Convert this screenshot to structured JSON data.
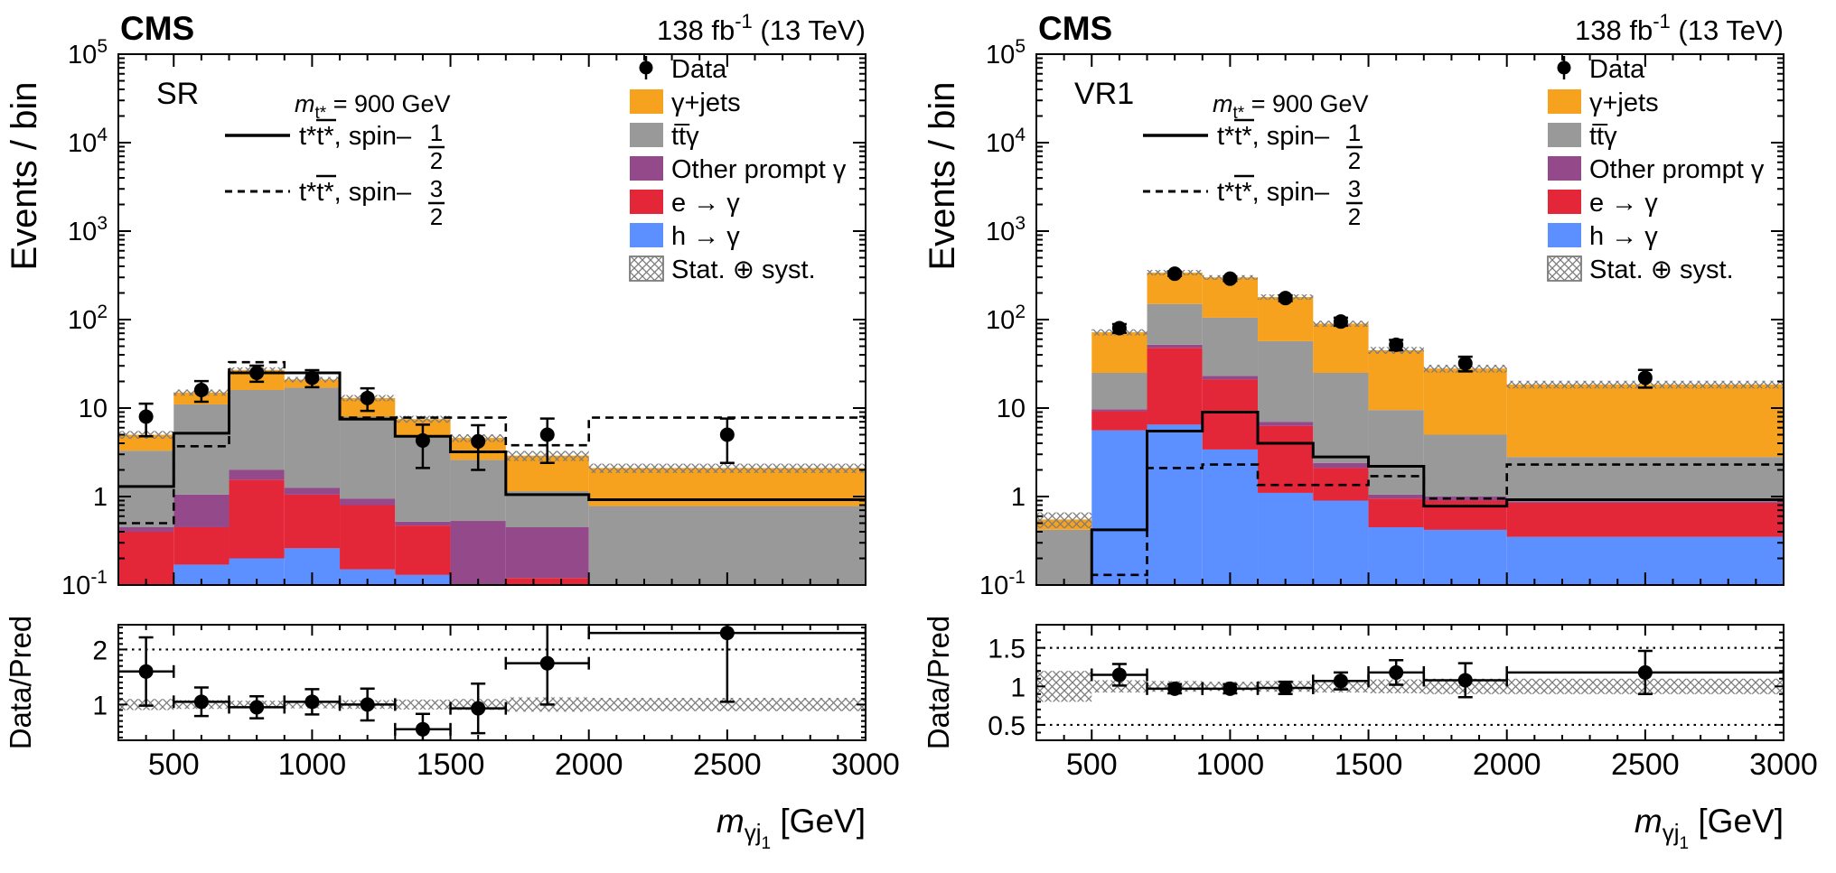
{
  "figure_title": "CMS excited top quark search m_gamma_j1 distributions",
  "colors": {
    "orange": "#F7A21F",
    "gray": "#999999",
    "purple": "#94498B",
    "red": "#E32638",
    "blue": "#5C8FFF",
    "hatch": "#7b7b7b",
    "black": "#000000"
  },
  "axes_common": {
    "xlim": [
      300,
      3000
    ],
    "x_major_ticks": [
      500,
      1000,
      1500,
      2000,
      2500,
      3000
    ],
    "x_minor_step": 100,
    "y_decade_labels": [
      5,
      4,
      3,
      2,
      1,
      0,
      -1
    ],
    "ylim": [
      0.1,
      100000
    ]
  },
  "chart_data": [
    {
      "type": "stacked-histogram-log+ratio",
      "region_label": "SR",
      "experiment_label": "CMS",
      "lumi_label": {
        "pre": "138 fb",
        "sup": "-1",
        "post": " (13 TeV)"
      },
      "ylabel": "Events / bin",
      "xlabel": {
        "var": "m",
        "sub": "γj",
        "subsub": "1",
        "unit": " [GeV]"
      },
      "signal_mass_label": {
        "var": "m",
        "sub": "t*",
        "rest": " = 900 GeV"
      },
      "bin_edges": [
        300,
        500,
        700,
        900,
        1100,
        1300,
        1500,
        1700,
        2000,
        3000
      ],
      "series": [
        {
          "name": "h-to-gamma",
          "label": "h → γ",
          "color": "blue",
          "values": [
            0.03,
            0.17,
            0.2,
            0.26,
            0.15,
            0.13,
            0.03,
            0.1,
            0.005
          ]
        },
        {
          "name": "e-to-gamma",
          "label": "e → γ",
          "color": "red",
          "values": [
            0.37,
            0.28,
            1.35,
            0.79,
            0.65,
            0.34,
            0.07,
            0.02,
            0.005
          ]
        },
        {
          "name": "other-prompt-gamma",
          "label": "Other prompt γ",
          "color": "purple",
          "values": [
            0.05,
            0.6,
            0.45,
            0.2,
            0.15,
            0.05,
            0.43,
            0.33,
            0.01
          ]
        },
        {
          "name": "ttbar-gamma",
          "label": "tt̅γ",
          "color": "gray",
          "values": [
            2.85,
            9.95,
            14.0,
            15.75,
            7.05,
            4.18,
            2.07,
            0.7,
            0.76
          ]
        },
        {
          "name": "gamma-plus-jets",
          "label": "γ+jets",
          "color": "orange",
          "values": [
            1.7,
            4.0,
            11.0,
            4.0,
            5.0,
            2.8,
            2.0,
            1.75,
            1.32
          ]
        }
      ],
      "signals": [
        {
          "style": "solid",
          "label_prefix": "t*t*, spin–",
          "frac_num": "1",
          "frac_den": "2",
          "values": [
            1.3,
            5.2,
            25,
            25,
            7.5,
            4.8,
            3.2,
            1.05,
            0.92
          ]
        },
        {
          "style": "dashed",
          "label_prefix": "t*t*, spin–",
          "frac_num": "3",
          "frac_den": "2",
          "values": [
            0.5,
            3.7,
            33,
            25,
            7.8,
            7.8,
            7.8,
            3.8,
            7.8
          ]
        }
      ],
      "data_points": {
        "label": "Data",
        "x": [
          400,
          600,
          800,
          1000,
          1200,
          1400,
          1600,
          1850,
          2500
        ],
        "y": [
          8,
          16,
          25,
          22,
          13,
          4.3,
          4.2,
          5,
          5
        ],
        "yerr": [
          3.2,
          4.2,
          5.2,
          4.8,
          3.7,
          2.2,
          2.2,
          2.6,
          2.6
        ]
      },
      "uncertainty": {
        "label": "Stat. ⊕ syst.",
        "band_frac": [
          0.1,
          0.08,
          0.07,
          0.07,
          0.08,
          0.09,
          0.1,
          0.13,
          0.12
        ]
      },
      "legend": [
        {
          "label": "Data",
          "marker": "data"
        },
        {
          "label": "γ+jets",
          "marker": "box",
          "color": "orange"
        },
        {
          "label": "tt̅γ",
          "marker": "box",
          "color": "gray"
        },
        {
          "label": "Other prompt γ",
          "marker": "box",
          "color": "purple"
        },
        {
          "label": "e → γ",
          "marker": "box",
          "color": "red"
        },
        {
          "label": "h → γ",
          "marker": "box",
          "color": "blue"
        },
        {
          "label": "Stat. ⊕ syst.",
          "marker": "hatch"
        }
      ],
      "ratio": {
        "ylabel": "Data/Pred",
        "ylim": [
          0.35,
          2.45
        ],
        "major_ticks": [
          1,
          2
        ],
        "dotted_lines": [
          2
        ],
        "x": [
          400,
          600,
          800,
          1000,
          1200,
          1400,
          1600,
          1850,
          2500
        ],
        "y": [
          1.6,
          1.05,
          0.95,
          1.05,
          1.0,
          0.55,
          0.93,
          1.75,
          2.3
        ],
        "yerr": [
          0.62,
          0.26,
          0.2,
          0.23,
          0.29,
          0.28,
          0.45,
          0.75,
          1.25
        ]
      }
    },
    {
      "type": "stacked-histogram-log+ratio",
      "region_label": "VR1",
      "experiment_label": "CMS",
      "lumi_label": {
        "pre": "138 fb",
        "sup": "-1",
        "post": " (13 TeV)"
      },
      "ylabel": "Events / bin",
      "xlabel": {
        "var": "m",
        "sub": "γj",
        "subsub": "1",
        "unit": " [GeV]"
      },
      "signal_mass_label": {
        "var": "m",
        "sub": "t*",
        "rest": " = 900 GeV"
      },
      "bin_edges": [
        300,
        500,
        700,
        900,
        1100,
        1300,
        1500,
        1700,
        2000,
        3000
      ],
      "series": [
        {
          "name": "h-to-gamma",
          "label": "h → γ",
          "color": "blue",
          "values": [
            0.002,
            5.6,
            6.5,
            3.4,
            1.1,
            0.9,
            0.45,
            0.42,
            0.35
          ]
        },
        {
          "name": "e-to-gamma",
          "label": "e → γ",
          "color": "red",
          "values": [
            0.004,
            3.6,
            41.5,
            17.6,
            5.2,
            1.2,
            0.5,
            0.48,
            0.5
          ]
        },
        {
          "name": "other-prompt-gamma",
          "label": "Other prompt γ",
          "color": "purple",
          "values": [
            0.005,
            0.5,
            4.0,
            2.0,
            0.7,
            0.3,
            0.1,
            0.1,
            0.03
          ]
        },
        {
          "name": "ttbar-gamma",
          "label": "tt̅γ",
          "color": "gray",
          "values": [
            0.41,
            15.3,
            98,
            82,
            50,
            22.6,
            8.45,
            4.0,
            1.92
          ]
        },
        {
          "name": "gamma-plus-jets",
          "label": "γ+jets",
          "color": "orange",
          "values": [
            0.13,
            47,
            190,
            195,
            123,
            65,
            35.5,
            23,
            15.7
          ]
        }
      ],
      "signals": [
        {
          "style": "solid",
          "label_prefix": "t*t*, spin–",
          "frac_num": "1",
          "frac_den": "2",
          "values": [
            0.08,
            0.42,
            5.5,
            9.0,
            4.0,
            2.8,
            2.2,
            0.78,
            0.92
          ]
        },
        {
          "style": "dashed",
          "label_prefix": "t*t*, spin–",
          "frac_num": "3",
          "frac_den": "2",
          "values": [
            0.09,
            0.13,
            2.1,
            2.3,
            1.35,
            1.35,
            1.7,
            0.95,
            2.3
          ]
        }
      ],
      "data_points": {
        "label": "Data",
        "x": [
          600,
          800,
          1000,
          1200,
          1400,
          1600,
          1850,
          2500
        ],
        "y": [
          80,
          330,
          290,
          175,
          95,
          52,
          32,
          22
        ],
        "yerr": [
          9,
          18,
          17,
          13,
          10,
          7,
          6,
          5
        ]
      },
      "uncertainty": {
        "label": "Stat. ⊕ syst.",
        "band_frac": [
          0.2,
          0.08,
          0.07,
          0.06,
          0.07,
          0.08,
          0.09,
          0.1,
          0.1
        ]
      },
      "legend": [
        {
          "label": "Data",
          "marker": "data"
        },
        {
          "label": "γ+jets",
          "marker": "box",
          "color": "orange"
        },
        {
          "label": "tt̅γ",
          "marker": "box",
          "color": "gray"
        },
        {
          "label": "Other prompt γ",
          "marker": "box",
          "color": "purple"
        },
        {
          "label": "e → γ",
          "marker": "box",
          "color": "red"
        },
        {
          "label": "h → γ",
          "marker": "box",
          "color": "blue"
        },
        {
          "label": "Stat. ⊕ syst.",
          "marker": "hatch"
        }
      ],
      "ratio": {
        "ylabel": "Data/Pred",
        "ylim": [
          0.3,
          1.8
        ],
        "major_ticks": [
          0.5,
          1,
          1.5
        ],
        "dotted_lines": [
          0.5,
          1.5
        ],
        "x": [
          600,
          800,
          1000,
          1200,
          1400,
          1600,
          1850,
          2500
        ],
        "y": [
          1.15,
          0.97,
          0.97,
          0.98,
          1.07,
          1.18,
          1.08,
          1.18
        ],
        "yerr": [
          0.14,
          0.06,
          0.06,
          0.08,
          0.11,
          0.16,
          0.22,
          0.28
        ]
      }
    }
  ]
}
